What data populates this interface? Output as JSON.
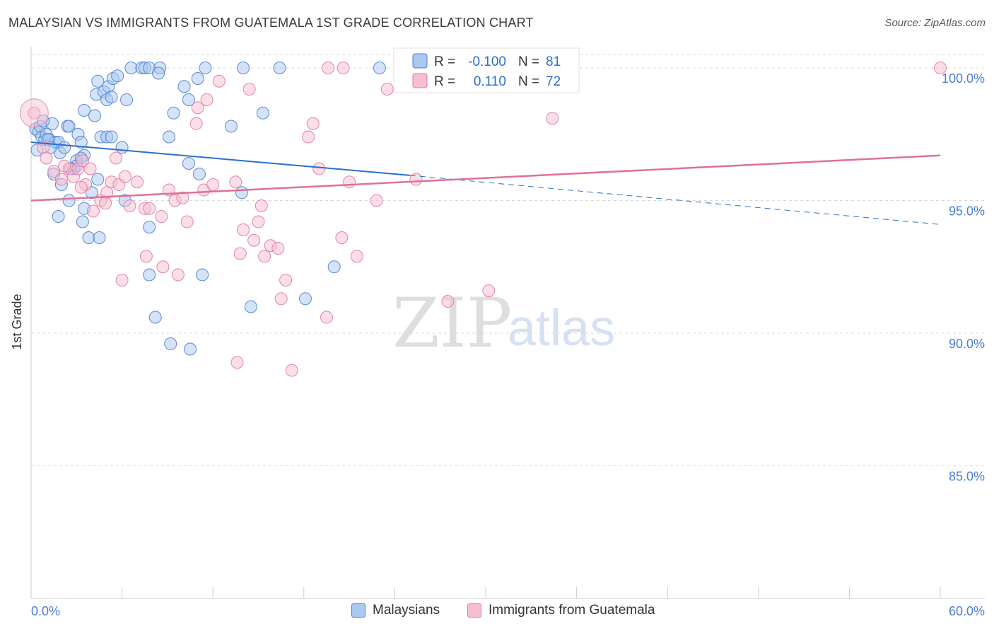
{
  "title": "MALAYSIAN VS IMMIGRANTS FROM GUATEMALA 1ST GRADE CORRELATION CHART",
  "source": "Source: ZipAtlas.com",
  "watermark": {
    "zip": "ZIP",
    "atlas": "atlas"
  },
  "colors": {
    "blue_fill": "#aac8f0",
    "blue_stroke": "#4a7fd4",
    "blue_line": "#2a6fcf",
    "pink_fill": "#f7bdd0",
    "pink_stroke": "#e07aa0",
    "pink_line": "#e0709a",
    "axis_label": "#4a7fd4",
    "grid": "#d8d8d8"
  },
  "legend_stats": [
    {
      "r_label": "R =",
      "r_value": "-0.100",
      "n_label": "N =",
      "n_value": "81"
    },
    {
      "r_label": "R =",
      "r_value": "0.110",
      "n_label": "N =",
      "n_value": "72"
    }
  ],
  "legend_bottom": [
    "Malaysians",
    "Immigrants from Guatemala"
  ],
  "chart_data": {
    "type": "scatter",
    "title": "MALAYSIAN VS IMMIGRANTS FROM GUATEMALA 1ST GRADE CORRELATION CHART",
    "xlabel": "",
    "ylabel": "1st Grade",
    "xlim": [
      0,
      60
    ],
    "ylim": [
      80,
      100.8
    ],
    "x_tick_labels": [
      "0.0%",
      "60.0%"
    ],
    "y_ticks": [
      85,
      90,
      95,
      100
    ],
    "y_tick_labels": [
      "85.0%",
      "90.0%",
      "95.0%",
      "100.0%"
    ],
    "series": [
      {
        "name": "Malaysians",
        "R": -0.1,
        "N": 81,
        "trend": {
          "x0": 0,
          "y0": 97.2,
          "x1": 25,
          "y1": 95.95,
          "dash_x1": 60,
          "dash_y1": 94.1
        },
        "points": [
          [
            0.3,
            97.7
          ],
          [
            0.5,
            97.6
          ],
          [
            0.7,
            97.4
          ],
          [
            0.9,
            97.3
          ],
          [
            0.6,
            97.8
          ],
          [
            1.0,
            97.5
          ],
          [
            1.2,
            97.3
          ],
          [
            1.4,
            97.9
          ],
          [
            1.6,
            97.2
          ],
          [
            1.8,
            97.2
          ],
          [
            1.5,
            96.0
          ],
          [
            1.9,
            96.8
          ],
          [
            2.4,
            97.8
          ],
          [
            2.5,
            97.8
          ],
          [
            2.8,
            96.2
          ],
          [
            3.1,
            97.5
          ],
          [
            3.3,
            97.2
          ],
          [
            3.5,
            96.7
          ],
          [
            2.0,
            95.6
          ],
          [
            2.5,
            95.0
          ],
          [
            1.8,
            94.4
          ],
          [
            3.4,
            94.2
          ],
          [
            3.8,
            93.6
          ],
          [
            4.5,
            93.6
          ],
          [
            3.5,
            94.7
          ],
          [
            4.0,
            95.3
          ],
          [
            4.4,
            95.8
          ],
          [
            3.0,
            96.5
          ],
          [
            3.0,
            96.3
          ],
          [
            3.5,
            98.4
          ],
          [
            4.2,
            98.2
          ],
          [
            4.3,
            99.0
          ],
          [
            4.4,
            99.5
          ],
          [
            4.8,
            99.1
          ],
          [
            5.1,
            99.3
          ],
          [
            5.0,
            98.8
          ],
          [
            5.3,
            98.9
          ],
          [
            5.4,
            99.6
          ],
          [
            5.7,
            99.7
          ],
          [
            6.6,
            100.0
          ],
          [
            7.3,
            100.0
          ],
          [
            7.5,
            100.0
          ],
          [
            7.8,
            100.0
          ],
          [
            8.5,
            100.0
          ],
          [
            8.4,
            99.8
          ],
          [
            9.4,
            98.3
          ],
          [
            10.1,
            99.3
          ],
          [
            10.4,
            98.8
          ],
          [
            11.0,
            99.6
          ],
          [
            11.5,
            100.0
          ],
          [
            14.0,
            100.0
          ],
          [
            16.4,
            100.0
          ],
          [
            23.0,
            100.0
          ],
          [
            6.3,
            98.8
          ],
          [
            4.6,
            97.4
          ],
          [
            5.0,
            97.4
          ],
          [
            5.3,
            97.4
          ],
          [
            6.0,
            97.0
          ],
          [
            6.2,
            95.0
          ],
          [
            7.8,
            94.0
          ],
          [
            7.8,
            92.2
          ],
          [
            8.2,
            90.6
          ],
          [
            9.2,
            89.6
          ],
          [
            10.5,
            89.4
          ],
          [
            11.3,
            92.2
          ],
          [
            10.4,
            96.4
          ],
          [
            11.1,
            96.0
          ],
          [
            9.1,
            97.4
          ],
          [
            13.2,
            97.8
          ],
          [
            13.9,
            95.3
          ],
          [
            14.5,
            91.0
          ],
          [
            15.3,
            98.3
          ],
          [
            18.1,
            91.3
          ],
          [
            20.0,
            92.5
          ],
          [
            3.3,
            96.6
          ],
          [
            2.6,
            96.2
          ],
          [
            1.1,
            97.3
          ],
          [
            1.3,
            97.0
          ],
          [
            2.2,
            97.0
          ],
          [
            0.4,
            96.9
          ],
          [
            0.8,
            98.0
          ]
        ]
      },
      {
        "name": "Immigrants from Guatemala",
        "R": 0.11,
        "N": 72,
        "trend": {
          "x0": 0,
          "y0": 95.0,
          "x1": 60,
          "y1": 96.7
        },
        "points": [
          [
            0.2,
            98.3
          ],
          [
            0.8,
            97.0
          ],
          [
            1.0,
            96.6
          ],
          [
            1.5,
            96.1
          ],
          [
            2.0,
            95.8
          ],
          [
            2.5,
            96.2
          ],
          [
            2.8,
            95.9
          ],
          [
            3.1,
            96.2
          ],
          [
            3.4,
            96.5
          ],
          [
            3.9,
            96.2
          ],
          [
            3.6,
            95.6
          ],
          [
            4.1,
            94.6
          ],
          [
            4.6,
            95.0
          ],
          [
            5.0,
            95.3
          ],
          [
            5.3,
            95.7
          ],
          [
            5.6,
            96.6
          ],
          [
            5.8,
            95.6
          ],
          [
            6.2,
            95.9
          ],
          [
            6.5,
            94.8
          ],
          [
            7.0,
            95.7
          ],
          [
            7.5,
            94.7
          ],
          [
            7.8,
            94.7
          ],
          [
            8.6,
            94.4
          ],
          [
            9.1,
            95.4
          ],
          [
            9.5,
            95.0
          ],
          [
            10.0,
            95.1
          ],
          [
            10.3,
            94.2
          ],
          [
            11.4,
            95.4
          ],
          [
            11.6,
            98.8
          ],
          [
            11.0,
            98.5
          ],
          [
            12.0,
            95.6
          ],
          [
            12.4,
            99.5
          ],
          [
            13.5,
            95.7
          ],
          [
            13.8,
            93.0
          ],
          [
            14.0,
            93.9
          ],
          [
            14.4,
            99.2
          ],
          [
            14.7,
            93.5
          ],
          [
            15.0,
            94.2
          ],
          [
            15.2,
            94.8
          ],
          [
            15.4,
            92.9
          ],
          [
            15.8,
            93.3
          ],
          [
            16.3,
            93.2
          ],
          [
            16.5,
            91.3
          ],
          [
            16.8,
            92.0
          ],
          [
            17.2,
            88.6
          ],
          [
            18.3,
            97.4
          ],
          [
            18.6,
            97.9
          ],
          [
            19.0,
            96.2
          ],
          [
            19.5,
            90.6
          ],
          [
            20.5,
            93.6
          ],
          [
            21.0,
            95.7
          ],
          [
            21.5,
            92.9
          ],
          [
            22.8,
            95.0
          ],
          [
            23.5,
            99.2
          ],
          [
            25.4,
            95.8
          ],
          [
            19.6,
            100.0
          ],
          [
            20.6,
            100.0
          ],
          [
            33.0,
            100.0
          ],
          [
            34.4,
            98.1
          ],
          [
            30.2,
            91.6
          ],
          [
            27.5,
            91.2
          ],
          [
            13.6,
            88.9
          ],
          [
            6.0,
            92.0
          ],
          [
            7.6,
            92.9
          ],
          [
            8.7,
            92.5
          ],
          [
            9.7,
            92.2
          ],
          [
            10.9,
            97.9
          ],
          [
            31.5,
            100.0
          ],
          [
            60.0,
            100.0
          ],
          [
            4.9,
            94.9
          ],
          [
            3.3,
            95.5
          ],
          [
            2.2,
            96.3
          ]
        ]
      }
    ]
  }
}
